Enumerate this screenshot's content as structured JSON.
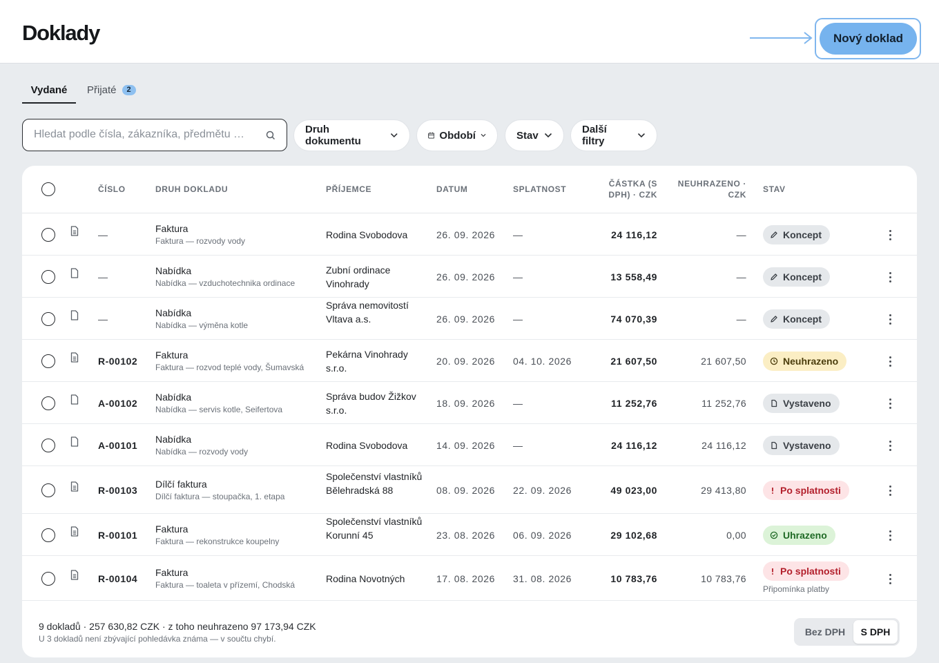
{
  "header": {
    "title": "Doklady",
    "new_button": "Nový doklad"
  },
  "tabs": [
    {
      "label": "Vydané",
      "active": true
    },
    {
      "label": "Přijaté",
      "count": "2",
      "active": false
    }
  ],
  "search": {
    "placeholder": "Hledat podle čísla, zákazníka, předmětu …",
    "value": ""
  },
  "filters": [
    {
      "label": "Druh dokumentu",
      "icon": "chevron-down-icon"
    },
    {
      "label": "Období",
      "icon": "calendar-icon"
    },
    {
      "label": "Stav",
      "icon": "chevron-down-icon"
    },
    {
      "label": "Další filtry",
      "icon": "chevron-down-icon"
    }
  ],
  "table": {
    "columns": {
      "number": "Číslo",
      "type": "Druh dokladu",
      "recipient": "Příjemce",
      "date": "Datum",
      "due": "Splatnost",
      "amount": "Částka (s DPH) · CZK",
      "unpaid": "Neuhrazeno · CZK",
      "status": "Stav"
    },
    "rows": [
      {
        "number": "—",
        "type": "Faktura",
        "subject": "Faktura — rozvody vody",
        "recipient": "Rodina Svobodova",
        "date": "26. 09. 2026",
        "due": "—",
        "amount": "24 116,12",
        "unpaid": "—",
        "status": "Koncept",
        "status_icon": "pencil-icon"
      },
      {
        "number": "—",
        "type": "Nabídka",
        "subject": "Nabídka — vzduchotechnika ordinace",
        "recipient": "Zubní ordinace Vinohrady",
        "date": "26. 09. 2026",
        "due": "—",
        "amount": "13 558,49",
        "unpaid": "—",
        "status": "Koncept",
        "status_icon": "pencil-icon"
      },
      {
        "number": "—",
        "type": "Nabídka",
        "subject": "Nabídka — výměna kotle",
        "recipient": "Správa nemovitostí Vltava a.s.",
        "date": "26. 09. 2026",
        "due": "—",
        "amount": "74 070,39",
        "unpaid": "—",
        "status": "Koncept",
        "status_icon": "pencil-icon"
      },
      {
        "number": "R-00102",
        "type": "Faktura",
        "subject": "Faktura — rozvod teplé vody, Šumavská",
        "recipient": "Pekárna Vinohrady s.r.o.",
        "date": "20. 09. 2026",
        "due": "04. 10. 2026",
        "amount": "21 607,50",
        "unpaid": "21 607,50",
        "status": "Neuhrazeno",
        "status_icon": "clock-icon"
      },
      {
        "number": "A-00102",
        "type": "Nabídka",
        "subject": "Nabídka — servis kotle, Seifertova",
        "recipient": "Správa budov Žižkov s.r.o.",
        "date": "18. 09. 2026",
        "due": "—",
        "amount": "11 252,76",
        "unpaid": "11 252,76",
        "status": "Vystaveno",
        "status_icon": "document-icon"
      },
      {
        "number": "A-00101",
        "type": "Nabídka",
        "subject": "Nabídka — rozvody vody",
        "recipient": "Rodina Svobodova",
        "date": "14. 09. 2026",
        "due": "—",
        "amount": "24 116,12",
        "unpaid": "24 116,12",
        "status": "Vystaveno",
        "status_icon": "document-icon"
      },
      {
        "number": "R-00103",
        "type": "Dílčí faktura",
        "subject": "Dílčí faktura — stoupačka, 1. etapa",
        "recipient": "Společenství vlastníků Bělehradská 88",
        "date": "08. 09. 2026",
        "due": "22. 09. 2026",
        "amount": "49 023,00",
        "unpaid": "29 413,80",
        "status": "Po splatnosti",
        "status_icon": "exclamation-icon"
      },
      {
        "number": "R-00101",
        "type": "Faktura",
        "subject": "Faktura — rekonstrukce koupelny",
        "recipient": "Společenství vlastníků Korunní 45",
        "date": "23. 08. 2026",
        "due": "06. 09. 2026",
        "amount": "29 102,68",
        "unpaid": "0,00",
        "status": "Uhrazeno",
        "status_icon": "check-circle-icon"
      },
      {
        "number": "R-00104",
        "type": "Faktura",
        "subject": "Faktura — toaleta v přízemí, Chodská",
        "recipient": "Rodina Novotných",
        "date": "17. 08. 2026",
        "due": "31. 08. 2026",
        "amount": "10 783,76",
        "unpaid": "10 783,76",
        "status": "Po splatnosti",
        "status_icon": "exclamation-icon",
        "status_note": "Připomínka platby"
      }
    ]
  },
  "footer": {
    "summary": "9 dokladů · 257 630,82 CZK · z toho neuhrazeno 97 173,94 CZK",
    "note": "U 3 dokladů není zbývající pohledávka známa — v součtu chybí.",
    "toggle": {
      "off": "Bez DPH",
      "on": "S DPH"
    }
  },
  "colors": {
    "accent": "#76b3ee",
    "badge_koncept": "#e5e8eb",
    "badge_neuhrazeno": "#fbeec4",
    "badge_po_splatnosti": "#fde4e6",
    "badge_uhrazeno": "#dcf3d8"
  }
}
